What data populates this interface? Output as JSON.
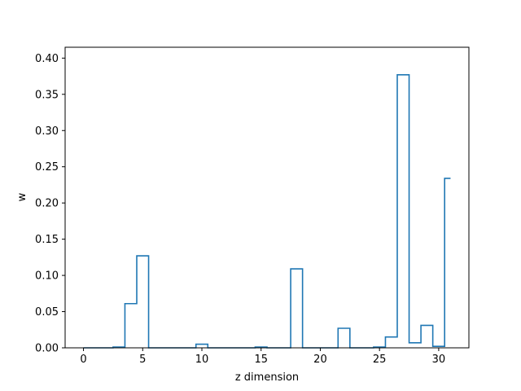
{
  "chart_data": {
    "type": "step",
    "xlabel": "z dimension",
    "ylabel": "w",
    "xlim": [
      -1.55,
      32.55
    ],
    "ylim": [
      0,
      0.415
    ],
    "xticks": [
      0,
      5,
      10,
      15,
      20,
      25,
      30
    ],
    "yticks": [
      0.0,
      0.05,
      0.1,
      0.15,
      0.2,
      0.25,
      0.3,
      0.35,
      0.4
    ],
    "ytick_labels": [
      "0.00",
      "0.05",
      "0.10",
      "0.15",
      "0.20",
      "0.25",
      "0.30",
      "0.35",
      "0.40"
    ],
    "step_where": "mid",
    "color": "#1f77b4",
    "series": [
      {
        "x": [
          0,
          1,
          2,
          3,
          4,
          5,
          6,
          7,
          8,
          9,
          10,
          11,
          12,
          13,
          14,
          15,
          16,
          17,
          18,
          19,
          20,
          21,
          22,
          23,
          24,
          25,
          26,
          27,
          28,
          29,
          30,
          31
        ],
        "values": [
          0,
          0,
          0,
          0.001,
          0.061,
          0.127,
          0,
          0,
          0,
          0,
          0.005,
          0,
          0,
          0,
          0,
          0.001,
          0,
          0,
          0.109,
          0,
          0,
          0,
          0.027,
          0,
          0,
          0.001,
          0.015,
          0.377,
          0.007,
          0.031,
          0.002,
          0.234
        ]
      }
    ]
  }
}
